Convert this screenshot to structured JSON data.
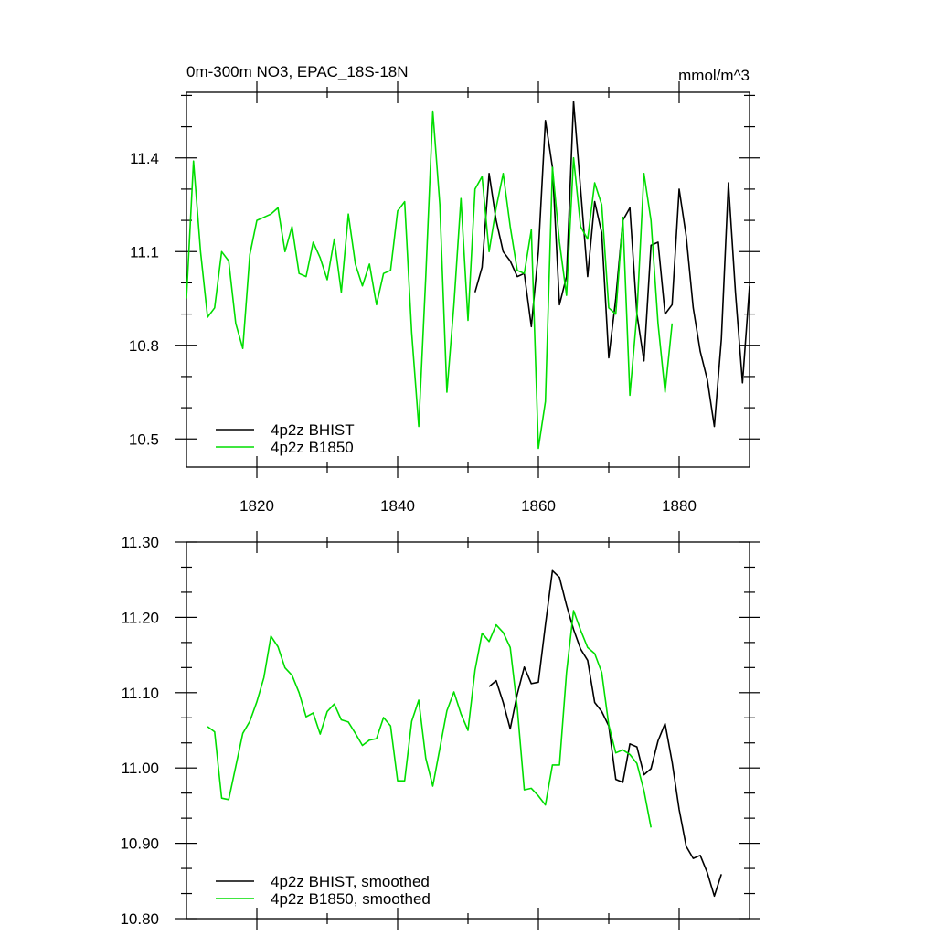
{
  "chart_data": [
    {
      "type": "line",
      "title": "0m-300m NO3, EPAC_18S-18N",
      "units": "mmol/m^3",
      "xlim": [
        1810,
        1890
      ],
      "ylim": [
        10.41,
        11.61
      ],
      "x_ticks": [
        1820,
        1840,
        1860,
        1880
      ],
      "y_ticks": [
        10.5,
        10.8,
        11.1,
        11.4
      ],
      "y_tick_labels": [
        "10.5",
        "10.8",
        "11.1",
        "11.4"
      ],
      "legend_position": "bottom-left",
      "series": [
        {
          "name": "4p2z BHIST",
          "color": "#000000",
          "x": [
            1851,
            1852,
            1853,
            1854,
            1855,
            1856,
            1857,
            1858,
            1859,
            1860,
            1861,
            1862,
            1863,
            1864,
            1865,
            1866,
            1867,
            1868,
            1869,
            1870,
            1871,
            1872,
            1873,
            1874,
            1875,
            1876,
            1877,
            1878,
            1879,
            1880,
            1881,
            1882,
            1883,
            1884,
            1885,
            1886,
            1887,
            1888,
            1889,
            1890
          ],
          "y": [
            10.97,
            11.05,
            11.35,
            11.2,
            11.1,
            11.07,
            11.02,
            11.03,
            10.86,
            11.1,
            11.52,
            11.37,
            10.93,
            11.02,
            11.58,
            11.3,
            11.02,
            11.26,
            11.16,
            10.76,
            10.95,
            11.2,
            11.24,
            10.9,
            10.75,
            11.12,
            11.13,
            10.9,
            10.93,
            11.3,
            11.15,
            10.92,
            10.78,
            10.69,
            10.54,
            10.82,
            11.32,
            10.97,
            10.68,
            10.99
          ]
        },
        {
          "name": "4p2z B1850",
          "color": "#00dd00",
          "x": [
            1810,
            1811,
            1812,
            1813,
            1814,
            1815,
            1816,
            1817,
            1818,
            1819,
            1820,
            1821,
            1822,
            1823,
            1824,
            1825,
            1826,
            1827,
            1828,
            1829,
            1830,
            1831,
            1832,
            1833,
            1834,
            1835,
            1836,
            1837,
            1838,
            1839,
            1840,
            1841,
            1842,
            1843,
            1844,
            1845,
            1846,
            1847,
            1848,
            1849,
            1850,
            1851,
            1852,
            1853,
            1854,
            1855,
            1856,
            1857,
            1858,
            1859,
            1860,
            1861,
            1862,
            1863,
            1864,
            1865,
            1866,
            1867,
            1868,
            1869,
            1870,
            1871,
            1872,
            1873,
            1874,
            1875,
            1876,
            1877,
            1878,
            1879,
            1880
          ],
          "y": [
            10.95,
            11.39,
            11.1,
            10.89,
            10.92,
            11.1,
            11.07,
            10.87,
            10.79,
            11.09,
            11.2,
            11.21,
            11.22,
            11.24,
            11.1,
            11.18,
            11.03,
            11.02,
            11.13,
            11.08,
            11.01,
            11.14,
            10.97,
            11.22,
            11.06,
            10.99,
            11.06,
            10.93,
            11.03,
            11.04,
            11.23,
            11.26,
            10.84,
            10.54,
            11.02,
            11.55,
            11.25,
            10.65,
            10.93,
            11.27,
            10.88,
            11.3,
            11.34,
            11.1,
            11.24,
            11.35,
            11.18,
            11.04,
            11.03,
            11.17,
            10.47,
            10.62,
            11.37,
            11.13,
            10.96,
            11.4,
            11.18,
            11.14,
            11.32,
            11.25,
            10.92,
            10.9,
            11.21,
            10.64,
            10.9,
            11.35,
            11.2,
            10.87,
            10.65,
            10.87,
            null
          ]
        }
      ]
    },
    {
      "type": "line",
      "xlim": [
        1810,
        1890
      ],
      "ylim": [
        10.8,
        11.3
      ],
      "y_ticks": [
        10.8,
        10.9,
        11.0,
        11.1,
        11.2,
        11.3
      ],
      "y_tick_labels": [
        "10.80",
        "10.90",
        "11.00",
        "11.10",
        "11.20",
        "11.30"
      ],
      "legend_position": "bottom-left",
      "series": [
        {
          "name": "4p2z BHIST, smoothed",
          "color": "#000000",
          "x": [
            1853,
            1854,
            1855,
            1856,
            1857,
            1858,
            1859,
            1860,
            1861,
            1862,
            1863,
            1864,
            1865,
            1866,
            1867,
            1868,
            1869,
            1870,
            1871,
            1872,
            1873,
            1874,
            1875,
            1876,
            1877,
            1878,
            1879,
            1880,
            1881,
            1882,
            1883,
            1884,
            1885,
            1886,
            1887
          ],
          "y": [
            11.108,
            11.116,
            11.087,
            11.052,
            11.098,
            11.134,
            11.112,
            11.114,
            11.19,
            11.262,
            11.253,
            11.216,
            11.184,
            11.158,
            11.143,
            11.087,
            11.075,
            11.056,
            10.985,
            10.981,
            11.032,
            11.028,
            10.991,
            10.999,
            11.036,
            11.059,
            11.008,
            10.945,
            10.896,
            10.88,
            10.884,
            10.861,
            10.83,
            10.859,
            null
          ]
        },
        {
          "name": "4p2z B1850, smoothed",
          "color": "#00dd00",
          "x": [
            1813,
            1814,
            1815,
            1816,
            1817,
            1818,
            1819,
            1820,
            1821,
            1822,
            1823,
            1824,
            1825,
            1826,
            1827,
            1828,
            1829,
            1830,
            1831,
            1832,
            1833,
            1834,
            1835,
            1836,
            1837,
            1838,
            1839,
            1840,
            1841,
            1842,
            1843,
            1844,
            1845,
            1846,
            1847,
            1848,
            1849,
            1850,
            1851,
            1852,
            1853,
            1854,
            1855,
            1856,
            1857,
            1858,
            1859,
            1860,
            1861,
            1862,
            1863,
            1864,
            1865,
            1866,
            1867,
            1868,
            1869,
            1870,
            1871,
            1872,
            1873,
            1874,
            1875,
            1876,
            1877
          ],
          "y": [
            11.055,
            11.048,
            10.96,
            10.958,
            11.002,
            11.046,
            11.062,
            11.088,
            11.12,
            11.175,
            11.161,
            11.133,
            11.123,
            11.1,
            11.068,
            11.073,
            11.045,
            11.075,
            11.085,
            11.064,
            11.061,
            11.046,
            11.03,
            11.037,
            11.039,
            11.067,
            11.056,
            10.983,
            10.983,
            11.062,
            11.09,
            11.013,
            10.976,
            11.026,
            11.076,
            11.101,
            11.072,
            11.05,
            11.13,
            11.179,
            11.168,
            11.19,
            11.18,
            11.16,
            11.08,
            10.971,
            10.973,
            10.963,
            10.951,
            11.004,
            11.004,
            11.127,
            11.209,
            11.183,
            11.16,
            11.152,
            11.127,
            11.057,
            11.02,
            11.024,
            11.018,
            11.006,
            10.97,
            10.921,
            null
          ]
        }
      ]
    }
  ]
}
